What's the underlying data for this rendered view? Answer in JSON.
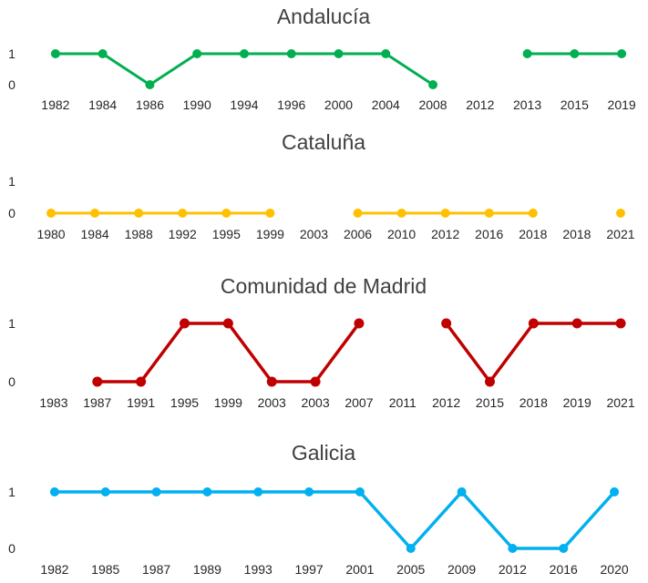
{
  "chart_data": [
    {
      "type": "line",
      "title": "Andalucía",
      "color": "#00B050",
      "categories": [
        "1982",
        "1984",
        "1986",
        "1990",
        "1994",
        "1996",
        "2000",
        "2004",
        "2008",
        "2012",
        "2013",
        "2015",
        "2019"
      ],
      "values": [
        1,
        1,
        0,
        1,
        1,
        1,
        1,
        1,
        0,
        null,
        1,
        1,
        1
      ],
      "ylim": [
        0,
        1
      ],
      "yticks": [
        "0",
        "1"
      ],
      "xlabel": "",
      "ylabel": ""
    },
    {
      "type": "line",
      "title": "Cataluña",
      "color": "#FFC000",
      "categories": [
        "1980",
        "1984",
        "1988",
        "1992",
        "1995",
        "1999",
        "2003",
        "2006",
        "2010",
        "2012",
        "2016",
        "2018",
        "2018",
        "2021"
      ],
      "values": [
        0,
        0,
        0,
        0,
        0,
        0,
        null,
        0,
        0,
        0,
        0,
        0,
        null,
        0
      ],
      "ylim": [
        0,
        1
      ],
      "yticks": [
        "0",
        "1"
      ],
      "xlabel": "",
      "ylabel": ""
    },
    {
      "type": "line",
      "title": "Comunidad de Madrid",
      "color": "#C00000",
      "categories": [
        "1983",
        "1987",
        "1991",
        "1995",
        "1999",
        "2003",
        "2003",
        "2007",
        "2011",
        "2012",
        "2015",
        "2018",
        "2019",
        "2021"
      ],
      "values": [
        null,
        0,
        0,
        1,
        1,
        0,
        0,
        1,
        null,
        1,
        0,
        1,
        1,
        1
      ],
      "ylim": [
        0,
        1
      ],
      "yticks": [
        "0",
        "1"
      ],
      "xlabel": "",
      "ylabel": ""
    },
    {
      "type": "line",
      "title": "Galicia",
      "color": "#00B0F0",
      "categories": [
        "1982",
        "1985",
        "1987",
        "1989",
        "1993",
        "1997",
        "2001",
        "2005",
        "2009",
        "2012",
        "2016",
        "2020"
      ],
      "values": [
        1,
        1,
        1,
        1,
        1,
        1,
        1,
        0,
        1,
        0,
        0,
        1
      ],
      "ylim": [
        0,
        1
      ],
      "yticks": [
        "0",
        "1"
      ],
      "xlabel": "",
      "ylabel": ""
    }
  ]
}
